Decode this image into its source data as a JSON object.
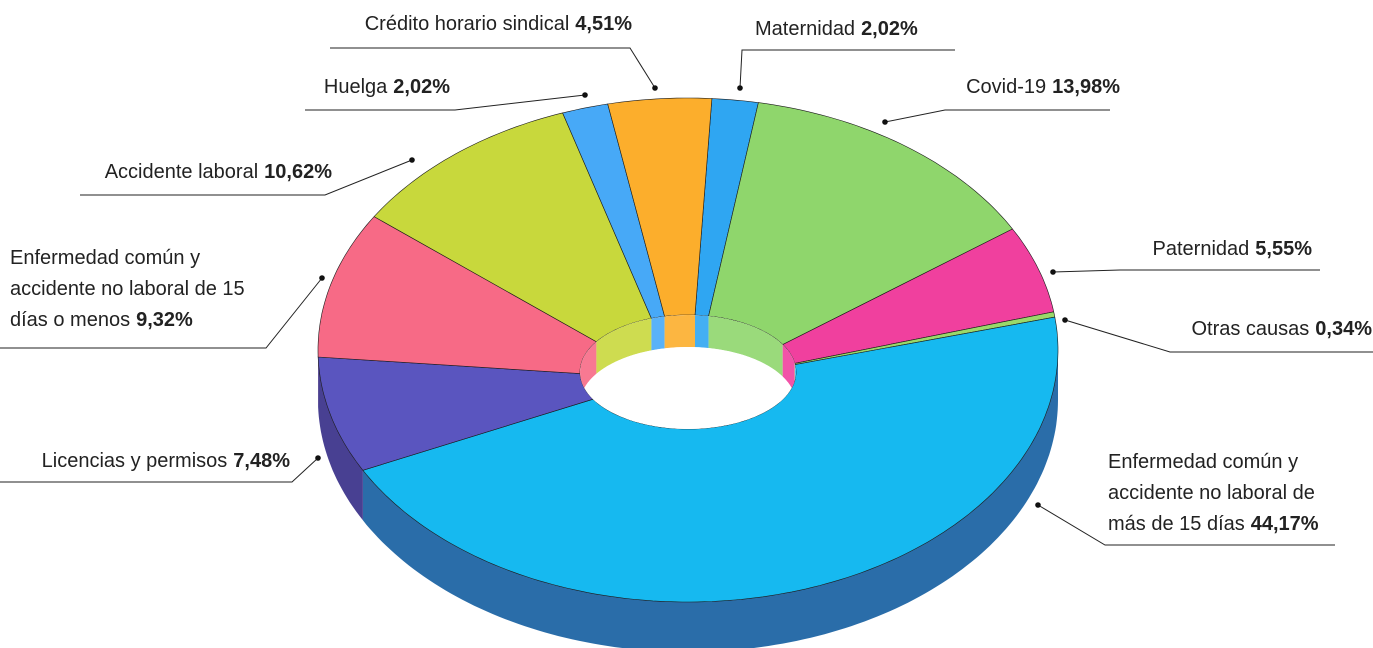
{
  "chart_data": {
    "type": "pie",
    "categories": [
      "Maternidad",
      "Covid-19",
      "Paternidad",
      "Otras causas",
      "Enfermedad común y accidente no laboral de más de 15 días",
      "Licencias y permisos",
      "Enfermedad común y accidente no laboral de 15 días o menos",
      "Accidente laboral",
      "Huelga",
      "Crédito horario sindical"
    ],
    "values": [
      2.02,
      13.98,
      5.55,
      0.34,
      44.17,
      7.48,
      9.32,
      10.62,
      2.02,
      4.51
    ],
    "value_labels": [
      "2,02%",
      "13,98%",
      "5,55%",
      "0,34%",
      "44,17%",
      "7,48%",
      "9,32%",
      "10,62%",
      "2,02%",
      "4,51%"
    ],
    "colors": [
      "#2fa6f2",
      "#8fd66c",
      "#f0409e",
      "#9ad96a",
      "#16b9f0",
      "#5a55bf",
      "#f76a86",
      "#c8d83c",
      "#47a9f7",
      "#fcae2c"
    ]
  }
}
